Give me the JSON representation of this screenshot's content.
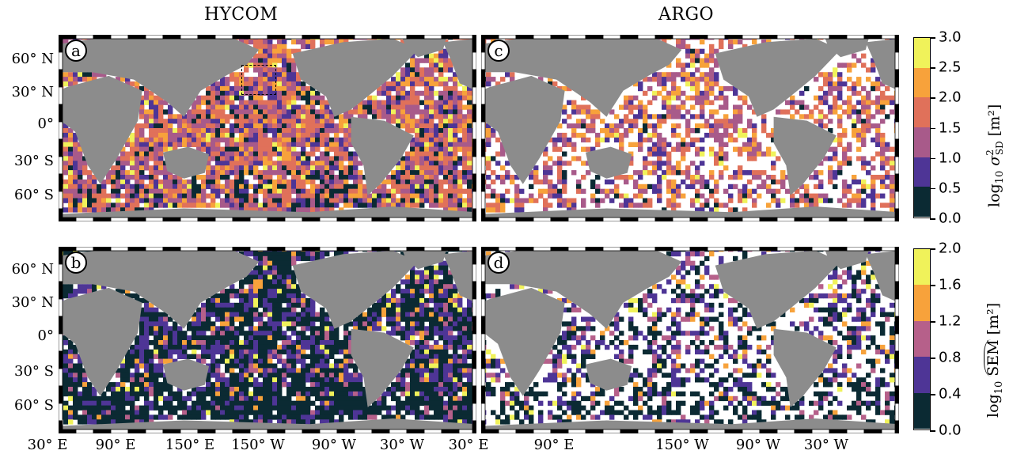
{
  "columns": {
    "left_title": "HYCOM",
    "right_title": "ARGO"
  },
  "panels": [
    {
      "id": "a",
      "label": "a",
      "dataset": "HYCOM",
      "metric": "variance",
      "density": 0.93,
      "level_weights": [
        0.1,
        0.14,
        0.26,
        0.3,
        0.15,
        0.05
      ]
    },
    {
      "id": "c",
      "label": "c",
      "dataset": "ARGO",
      "metric": "variance",
      "density": 0.55,
      "level_weights": [
        0.04,
        0.14,
        0.3,
        0.32,
        0.17,
        0.03
      ]
    },
    {
      "id": "b",
      "label": "b",
      "dataset": "HYCOM",
      "metric": "sem",
      "density": 0.93,
      "level_weights": [
        0.55,
        0.28,
        0.09,
        0.05,
        0.03
      ]
    },
    {
      "id": "d",
      "label": "d",
      "dataset": "ARGO",
      "metric": "sem",
      "density": 0.5,
      "level_weights": [
        0.38,
        0.34,
        0.14,
        0.1,
        0.04
      ]
    }
  ],
  "lat_labels": [
    "60° N",
    "30° N",
    "0°",
    "30° S",
    "60° S"
  ],
  "lon_labels": [
    "30° E",
    "90° E",
    "150° E",
    "150° W",
    "90° W",
    "30° W",
    "30° E",
    "90° E",
    "150° W",
    "90° W",
    "30° W"
  ],
  "colorbar_top": {
    "label": "log₁₀ σ²SD [m²]",
    "label_main": "log",
    "label_sub": "10",
    "label_sym": "σ",
    "label_sup": "2",
    "label_subsd": "SD",
    "label_unit": "[m²]",
    "ticks": [
      "3.0",
      "2.5",
      "2.0",
      "1.5",
      "1.0",
      "0.5",
      "0.0"
    ],
    "colors": [
      "#f0f25a",
      "#f7a23b",
      "#e0715a",
      "#a85a8a",
      "#4e3596",
      "#0b2a33"
    ]
  },
  "colorbar_bottom": {
    "label_main": "log",
    "label_sub": "10",
    "label_sem": "SEM",
    "label_unit": "[m²]",
    "ticks": [
      "2.0",
      "1.6",
      "1.2",
      "0.8",
      "0.4",
      "0.0"
    ],
    "colors": [
      "#f0f25a",
      "#f7a23b",
      "#b6608a",
      "#4e3596",
      "#0b2a33"
    ]
  },
  "colors": {
    "land": "#8c8c8c",
    "ocean_missing": "#ffffff"
  },
  "highlight_region": {
    "panel": "a",
    "description": "dashed box"
  }
}
